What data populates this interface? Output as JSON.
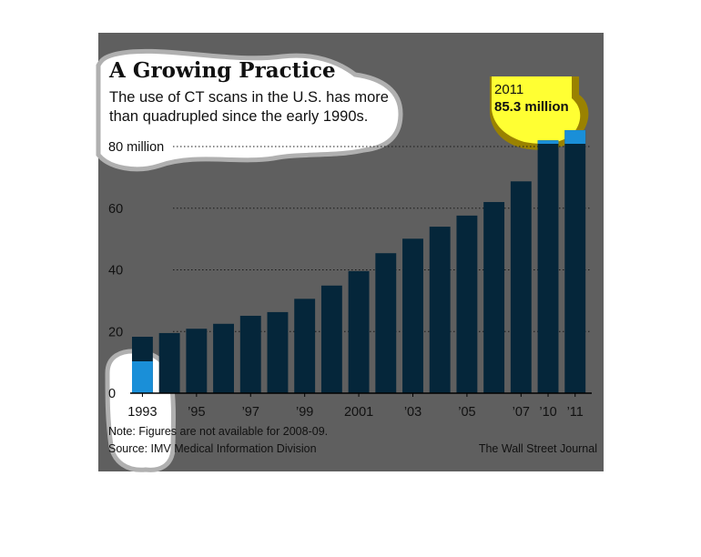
{
  "chart_data": {
    "type": "bar",
    "title": "A Growing Practice",
    "subtitle_lines": [
      "The use of CT scans in the U.S. has more",
      "than quadrupled since the early 1990s."
    ],
    "categories": [
      "1993",
      "1994",
      "1995",
      "1996",
      "1997",
      "1998",
      "1999",
      "2000",
      "2001",
      "2002",
      "2003",
      "2004",
      "2005",
      "2006",
      "2007",
      "2010",
      "2011"
    ],
    "x_tick_labels": [
      "1993",
      "",
      "’95",
      "",
      "’97",
      "",
      "’99",
      "",
      "2001",
      "",
      "’03",
      "",
      "’05",
      "",
      "’07",
      "’10",
      "’11"
    ],
    "values": [
      18.3,
      19.5,
      20.9,
      22.5,
      25.1,
      26.3,
      30.6,
      34.9,
      39.6,
      45.4,
      50.1,
      54.0,
      57.6,
      62.0,
      68.7,
      82.0,
      85.3
    ],
    "ylim": [
      0,
      90
    ],
    "y_ticks": [
      {
        "value": 0,
        "label": "0"
      },
      {
        "value": 20,
        "label": "20"
      },
      {
        "value": 40,
        "label": "40"
      },
      {
        "value": 60,
        "label": "60"
      },
      {
        "value": 80,
        "label": "80 million"
      }
    ],
    "gridlines": "dotted",
    "callout": {
      "year": "2011",
      "value": "85.3 million"
    },
    "note": "Note: Figures are not available for 2008-09.",
    "source": "Source: IMV Medical Information Division",
    "credit": "The Wall Street Journal"
  },
  "colors": {
    "background": "#5f5f5f",
    "bar": "#05263a",
    "highlight_blue": "#1a8fd8",
    "highlight_yellow": "#ffff33",
    "highlight_white": "#ffffff",
    "callout_shadow": "#9a8200"
  }
}
